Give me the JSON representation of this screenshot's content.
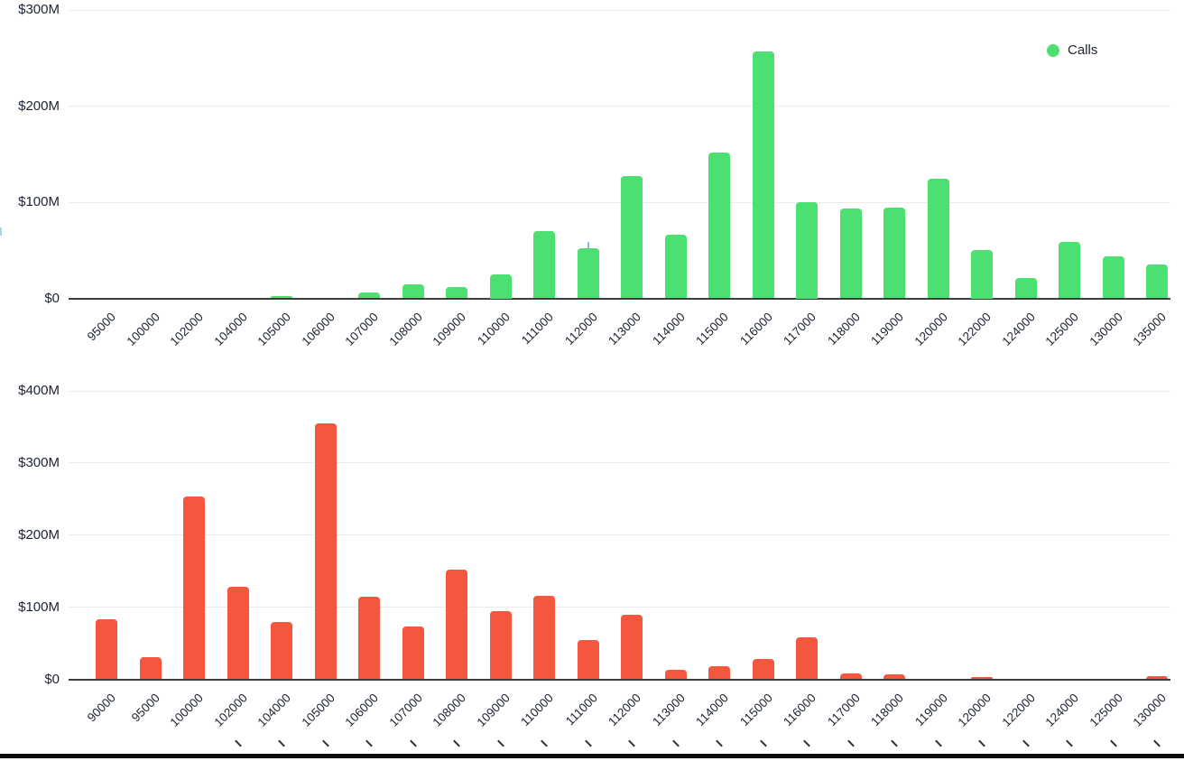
{
  "colors": {
    "calls": "#4cdf72",
    "puts": "#f4573e",
    "grid": "#ececec",
    "axis": "#3d3d3d",
    "text": "#1c2331",
    "marker_blue": "#8fb3f7",
    "edge_cyan": "#9fd8e3",
    "separator_black": "#0b0b0b"
  },
  "legend": {
    "calls_label": "Calls"
  },
  "chart_data": [
    {
      "type": "bar",
      "name": "top_chart",
      "legend": {
        "label": "Calls",
        "position": "top-right"
      },
      "grid": true,
      "unit": "USD millions",
      "ylim": [
        0,
        300
      ],
      "yticks": [
        {
          "label": "$0",
          "value": 0
        },
        {
          "label": "$100M",
          "value": 100
        },
        {
          "label": "$200M",
          "value": 200
        },
        {
          "label": "$300M",
          "value": 300
        }
      ],
      "categories": [
        "95000",
        "100000",
        "102000",
        "104000",
        "105000",
        "106000",
        "107000",
        "108000",
        "109000",
        "110000",
        "111000",
        "112000",
        "113000",
        "114000",
        "115000",
        "116000",
        "117000",
        "118000",
        "119000",
        "120000",
        "122000",
        "124000",
        "125000",
        "130000",
        "135000"
      ],
      "values": [
        0,
        0,
        0,
        0,
        2,
        0,
        6,
        15,
        12,
        25,
        70,
        52,
        127,
        66,
        152,
        257,
        100,
        93,
        94,
        124,
        50,
        21,
        59,
        44,
        35
      ],
      "annotations": {
        "cursor_tick_on_category": "112000"
      }
    },
    {
      "type": "bar",
      "name": "bottom_chart",
      "grid": true,
      "unit": "USD millions",
      "ylim": [
        0,
        400
      ],
      "yticks": [
        {
          "label": "$0",
          "value": 0
        },
        {
          "label": "$100M",
          "value": 100
        },
        {
          "label": "$200M",
          "value": 200
        },
        {
          "label": "$300M",
          "value": 300
        },
        {
          "label": "$400M",
          "value": 400
        }
      ],
      "categories": [
        "90000",
        "95000",
        "100000",
        "102000",
        "104000",
        "105000",
        "106000",
        "107000",
        "108000",
        "109000",
        "110000",
        "111000",
        "112000",
        "113000",
        "114000",
        "115000",
        "116000",
        "117000",
        "118000",
        "119000",
        "120000",
        "122000",
        "124000",
        "125000",
        "130000"
      ],
      "values": [
        83,
        31,
        253,
        128,
        80,
        355,
        115,
        73,
        152,
        95,
        116,
        54,
        90,
        13,
        18,
        28,
        58,
        8,
        7,
        0,
        3,
        0,
        0,
        0,
        4
      ]
    }
  ]
}
